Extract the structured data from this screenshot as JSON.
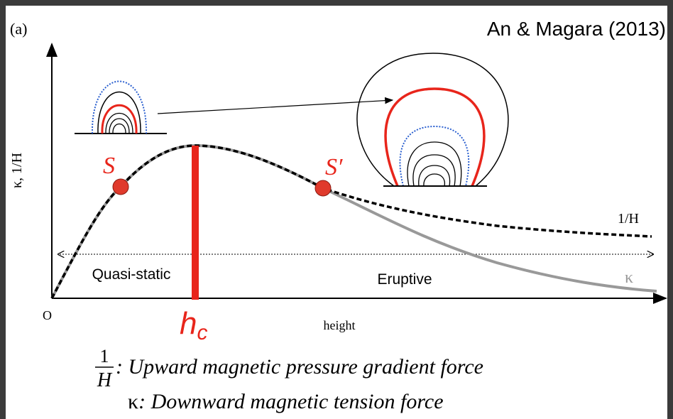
{
  "panel_label": "(a)",
  "citation": "An & Magara (2013)",
  "axes": {
    "y_label": "κ, 1/H",
    "x_label": "height",
    "origin": "O"
  },
  "points": {
    "s": "S",
    "s_prime": "S′"
  },
  "curves": {
    "inverse_h": "1/H",
    "kappa": "κ"
  },
  "regions": {
    "quasi_static": "Quasi-static",
    "eruptive": "Eruptive"
  },
  "critical_height": {
    "symbol": "h",
    "subscript": "c"
  },
  "legend": [
    {
      "numerator": "1",
      "denominator": "H",
      "text": ": Upward magnetic pressure gradient force"
    },
    {
      "symbol": "κ",
      "text": ": Downward magnetic tension force"
    }
  ]
}
